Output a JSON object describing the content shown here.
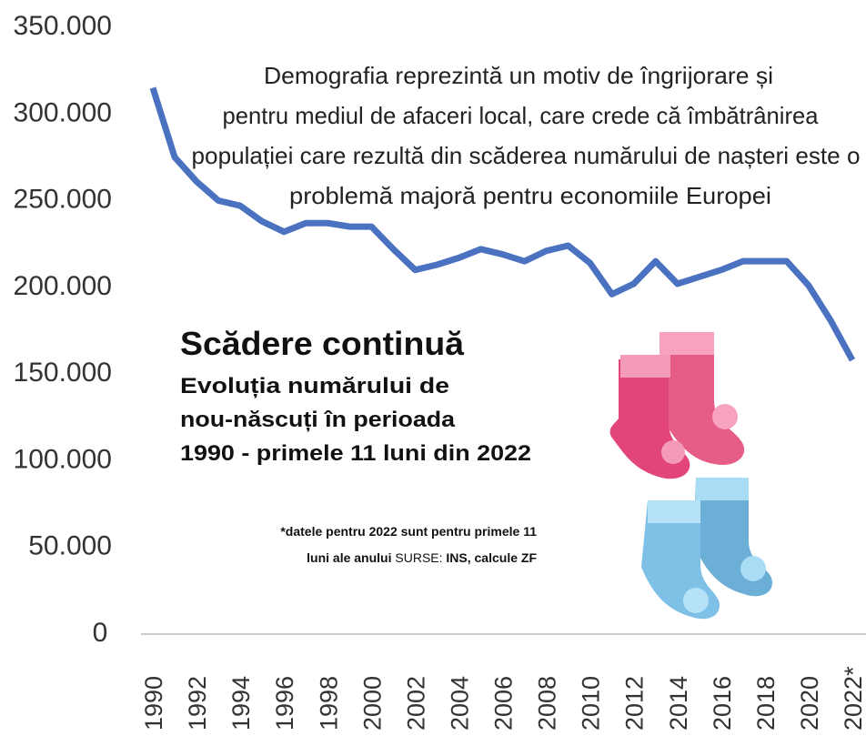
{
  "chart_data": {
    "type": "line",
    "title": "Scădere continuă",
    "subtitle": [
      "Evoluția numărului de",
      "nou-născuți în perioada",
      "1990 - primele 11 luni din 2022"
    ],
    "annotation": [
      "Demografia reprezintă un motiv de îngrijorare și",
      "pentru mediul de afaceri local, care crede că îmbătrânirea",
      "populației care rezultă din scăderea numărului de nașteri este o",
      "problemă majoră pentru economiile Europei"
    ],
    "footnote": "*datele pentru 2022 sunt pentru primele 11",
    "footnote_end": "luni ale anului",
    "source_label": "SURSE:",
    "source": "INS, calcule ZF",
    "x": [
      1990,
      1991,
      1992,
      1993,
      1994,
      1995,
      1996,
      1997,
      1998,
      1999,
      2000,
      2001,
      2002,
      2003,
      2004,
      2005,
      2006,
      2007,
      2008,
      2009,
      2010,
      2011,
      2012,
      2013,
      2014,
      2015,
      2016,
      2017,
      2018,
      2019,
      2020,
      2021,
      2022
    ],
    "series": [
      {
        "color": "#4a72c0",
        "values": [
          314000,
          274000,
          260000,
          249000,
          246000,
          237000,
          231000,
          236000,
          236000,
          234000,
          234000,
          221000,
          209000,
          212000,
          216000,
          221000,
          218000,
          214000,
          220000,
          223000,
          213000,
          195000,
          201000,
          214000,
          201000,
          205000,
          209000,
          214000,
          214000,
          214000,
          200000,
          180000,
          157000
        ]
      }
    ],
    "xlim": [
      1990,
      2022
    ],
    "xticks": [
      {
        "value": 1990,
        "label": "1990"
      },
      {
        "value": 1992,
        "label": "1992"
      },
      {
        "value": 1994,
        "label": "1994"
      },
      {
        "value": 1996,
        "label": "1996"
      },
      {
        "value": 1998,
        "label": "1998"
      },
      {
        "value": 2000,
        "label": "2000"
      },
      {
        "value": 2002,
        "label": "2002"
      },
      {
        "value": 2004,
        "label": "2004"
      },
      {
        "value": 2006,
        "label": "2006"
      },
      {
        "value": 2008,
        "label": "2008"
      },
      {
        "value": 2010,
        "label": "2010"
      },
      {
        "value": 2012,
        "label": "2012"
      },
      {
        "value": 2014,
        "label": "2014"
      },
      {
        "value": 2016,
        "label": "2016"
      },
      {
        "value": 2018,
        "label": "2018"
      },
      {
        "value": 2020,
        "label": "2020"
      },
      {
        "value": 2022,
        "label": "2022*"
      }
    ],
    "ylim": [
      0,
      350000
    ],
    "yticks": [
      0,
      {
        "value": 50000,
        "label": "50.000"
      },
      {
        "value": 100000,
        "label": "100.000"
      },
      {
        "value": 150000,
        "label": "150.000"
      },
      {
        "value": 200000,
        "label": "200.000"
      },
      {
        "value": 250000,
        "label": "250.000"
      },
      {
        "value": 300000,
        "label": "300.000"
      },
      {
        "value": 350000,
        "label": "350.000"
      }
    ],
    "grid": false
  }
}
